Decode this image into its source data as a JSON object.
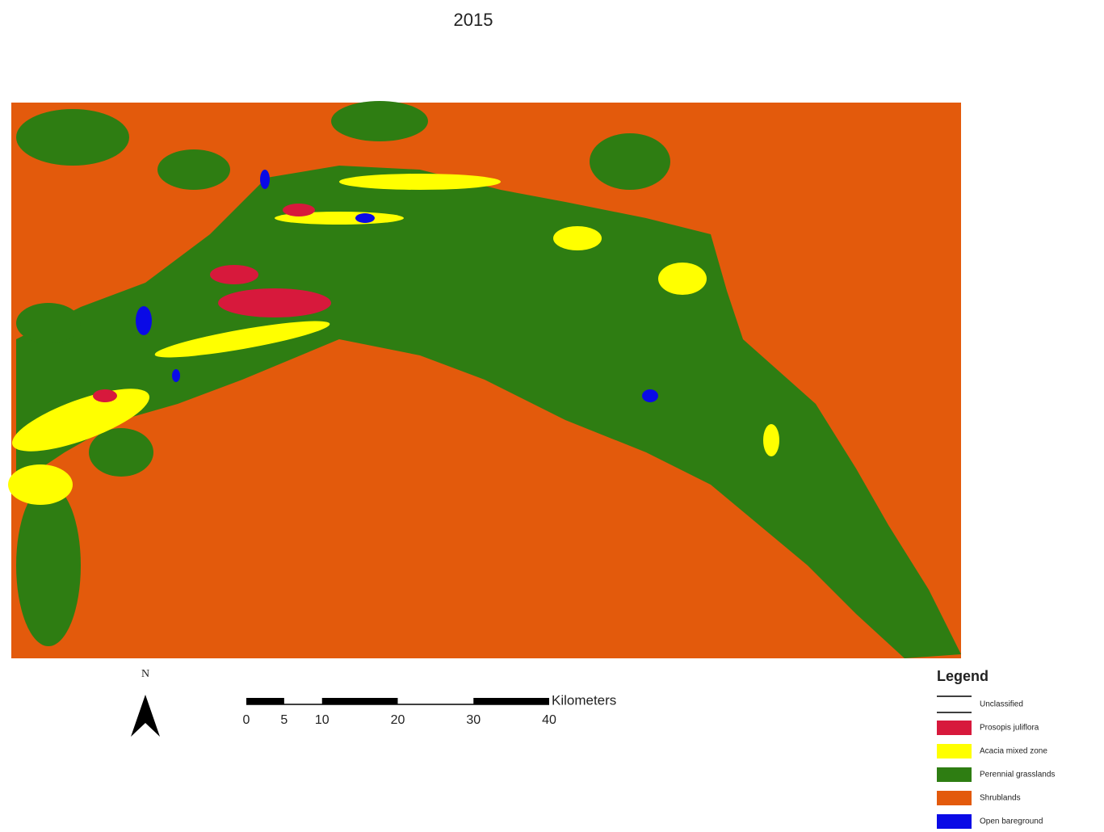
{
  "title": "2015",
  "north_arrow": {
    "label": "N"
  },
  "scale_bar": {
    "unit": "Kilometers",
    "ticks": [
      0,
      5,
      10,
      20,
      30,
      40
    ]
  },
  "legend": {
    "title": "Legend",
    "items": [
      {
        "label": "Unclassified",
        "color": "#000000",
        "symbol": "line"
      },
      {
        "label": "Prosopis juliflora",
        "color": "#d7193c",
        "symbol": "fill"
      },
      {
        "label": "Acacia mixed zone",
        "color": "#ffff00",
        "symbol": "fill"
      },
      {
        "label": "Perennial grasslands",
        "color": "#2e7d12",
        "symbol": "fill"
      },
      {
        "label": "Shrublands",
        "color": "#e35a0c",
        "symbol": "fill"
      },
      {
        "label": "Open bareground",
        "color": "#0a0ae6",
        "symbol": "fill"
      }
    ]
  }
}
